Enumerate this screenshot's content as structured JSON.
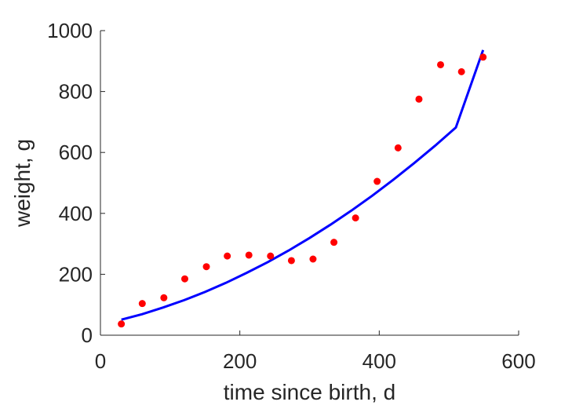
{
  "chart_data": {
    "type": "scatter",
    "title": "",
    "xlabel": "time since birth, d",
    "ylabel": "weight, g",
    "xlim": [
      0,
      600
    ],
    "ylim": [
      0,
      1000
    ],
    "xticks": [
      0,
      200,
      400,
      600
    ],
    "yticks": [
      0,
      200,
      400,
      600,
      800,
      1000
    ],
    "grid": false,
    "legend": "none",
    "series": [
      {
        "type": "scatter",
        "color": "#ff0000",
        "x": [
          30,
          60,
          91,
          121,
          152,
          182,
          213,
          244,
          274,
          305,
          335,
          366,
          397,
          427,
          457,
          488,
          518,
          549
        ],
        "y": [
          37,
          104,
          123,
          185,
          225,
          260,
          263,
          260,
          245,
          250,
          305,
          385,
          505,
          615,
          775,
          888,
          865,
          913
        ]
      },
      {
        "type": "line",
        "color": "#0000ff",
        "x": [
          30,
          60,
          90,
          120,
          150,
          180,
          210,
          240,
          270,
          300,
          330,
          360,
          390,
          420,
          450,
          480,
          510,
          549
        ],
        "y": [
          51,
          69,
          91,
          115,
          142,
          172,
          205,
          240,
          278,
          319,
          363,
          409,
          458,
          510,
          565,
          622,
          682,
          936
        ]
      }
    ]
  }
}
